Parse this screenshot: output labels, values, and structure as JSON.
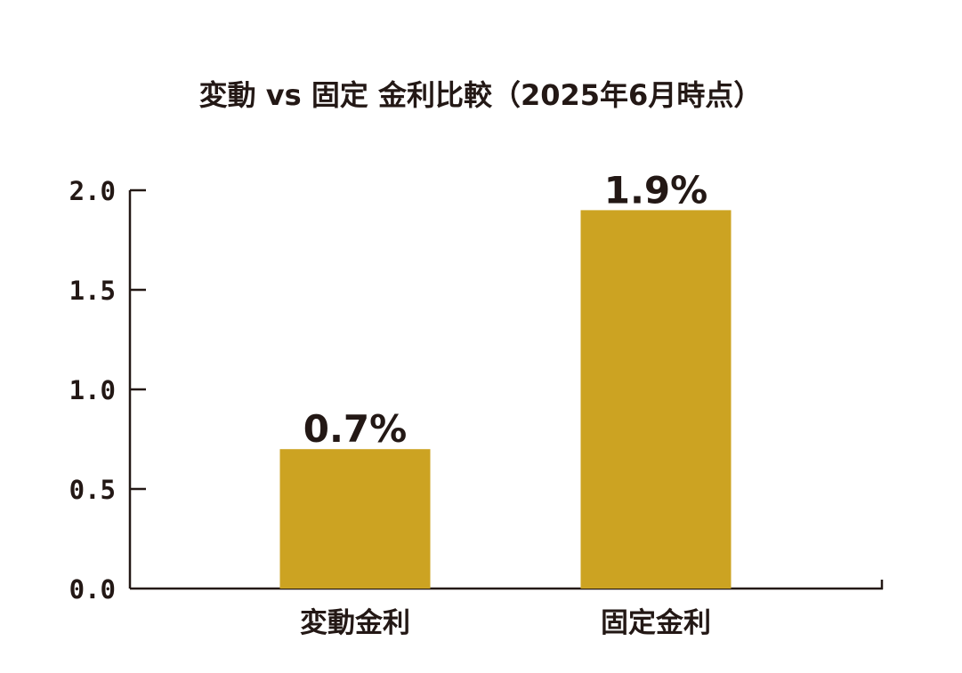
{
  "chart_data": {
    "type": "bar",
    "title": "変動 vs 固定 金利比較（2025年6月時点）",
    "categories": [
      "変動金利",
      "固定金利"
    ],
    "values": [
      0.7,
      1.9
    ],
    "data_labels": [
      "0.7%",
      "1.9%"
    ],
    "yticks": [
      "0.0",
      "0.5",
      "1.0",
      "1.5",
      "2.0"
    ],
    "ylim": [
      0,
      2.0
    ],
    "grid": false,
    "legend": "none",
    "xlabel": "",
    "ylabel": "",
    "colors": {
      "bar": "#CCA322",
      "axis": "#231815",
      "text": "#231815"
    }
  }
}
